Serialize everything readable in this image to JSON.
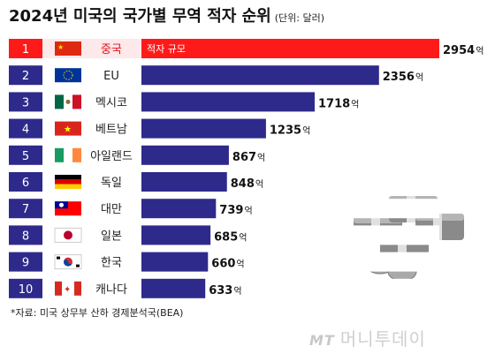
{
  "title": "2024년 미국의 국가별 무역 적자 순위",
  "unit_note": "(단위: 달러)",
  "bar_label": "적자 규모",
  "value_suffix": "억",
  "footer": "*자료: 미국 상무부 산하 경제분석국(BEA)",
  "watermark": {
    "mt": "MT",
    "name": "머니투데이"
  },
  "colors": {
    "highlight": "#ff1a1a",
    "bar": "#2e2a8c",
    "rank_highlight": "#ff1a1a",
    "row_bg_highlight": "#fde8ea",
    "row_bg": "#ececec"
  },
  "chart_data": {
    "type": "bar",
    "orientation": "horizontal",
    "title": "2024년 미국의 국가별 무역 적자 순위",
    "ylabel": "",
    "xlabel": "",
    "categories": [
      "중국",
      "EU",
      "멕시코",
      "베트남",
      "아일랜드",
      "독일",
      "대만",
      "일본",
      "한국",
      "캐나다"
    ],
    "ranks": [
      1,
      2,
      3,
      4,
      5,
      6,
      7,
      8,
      9,
      10
    ],
    "flags": [
      "china-flag-icon",
      "eu-flag-icon",
      "mexico-flag-icon",
      "vietnam-flag-icon",
      "ireland-flag-icon",
      "germany-flag-icon",
      "taiwan-flag-icon",
      "japan-flag-icon",
      "korea-flag-icon",
      "canada-flag-icon"
    ],
    "values": [
      2954,
      2356,
      1718,
      1235,
      867,
      848,
      739,
      685,
      660,
      633
    ],
    "xlim": [
      0,
      3000
    ]
  }
}
